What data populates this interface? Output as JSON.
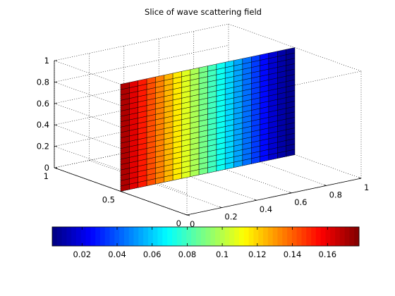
{
  "chart_data": {
    "type": "surface-slice-3d",
    "title": "Slice of wave scattering field",
    "x_axis": {
      "ticks": [
        "0",
        "0.2",
        "0.4",
        "0.6",
        "0.8",
        "1"
      ],
      "range": [
        0,
        1
      ]
    },
    "y_axis": {
      "ticks": [
        "0",
        "0.5",
        "1"
      ],
      "range": [
        0,
        1
      ]
    },
    "z_axis": {
      "ticks": [
        "0",
        "0.2",
        "0.4",
        "0.6",
        "0.8",
        "1"
      ],
      "range": [
        0,
        1
      ]
    },
    "grid": true,
    "colormap": "jet",
    "clim": [
      0.003,
      0.178
    ],
    "colorbar": {
      "location": "south",
      "ticks": [
        "0.02",
        "0.04",
        "0.06",
        "0.08",
        "0.1",
        "0.12",
        "0.14",
        "0.16"
      ],
      "tick_values": [
        0.02,
        0.04,
        0.06,
        0.08,
        0.1,
        0.12,
        0.14,
        0.16
      ]
    },
    "slice": {
      "plane": "y = 0.5",
      "x_range": [
        0,
        1
      ],
      "z_range": [
        0,
        1
      ],
      "grid_columns": 20,
      "grid_rows": 20,
      "values_by_column": [
        0.17,
        0.161,
        0.152,
        0.143,
        0.134,
        0.125,
        0.116,
        0.107,
        0.098,
        0.089,
        0.08,
        0.071,
        0.062,
        0.053,
        0.044,
        0.035,
        0.026,
        0.017,
        0.01,
        0.006
      ]
    }
  }
}
